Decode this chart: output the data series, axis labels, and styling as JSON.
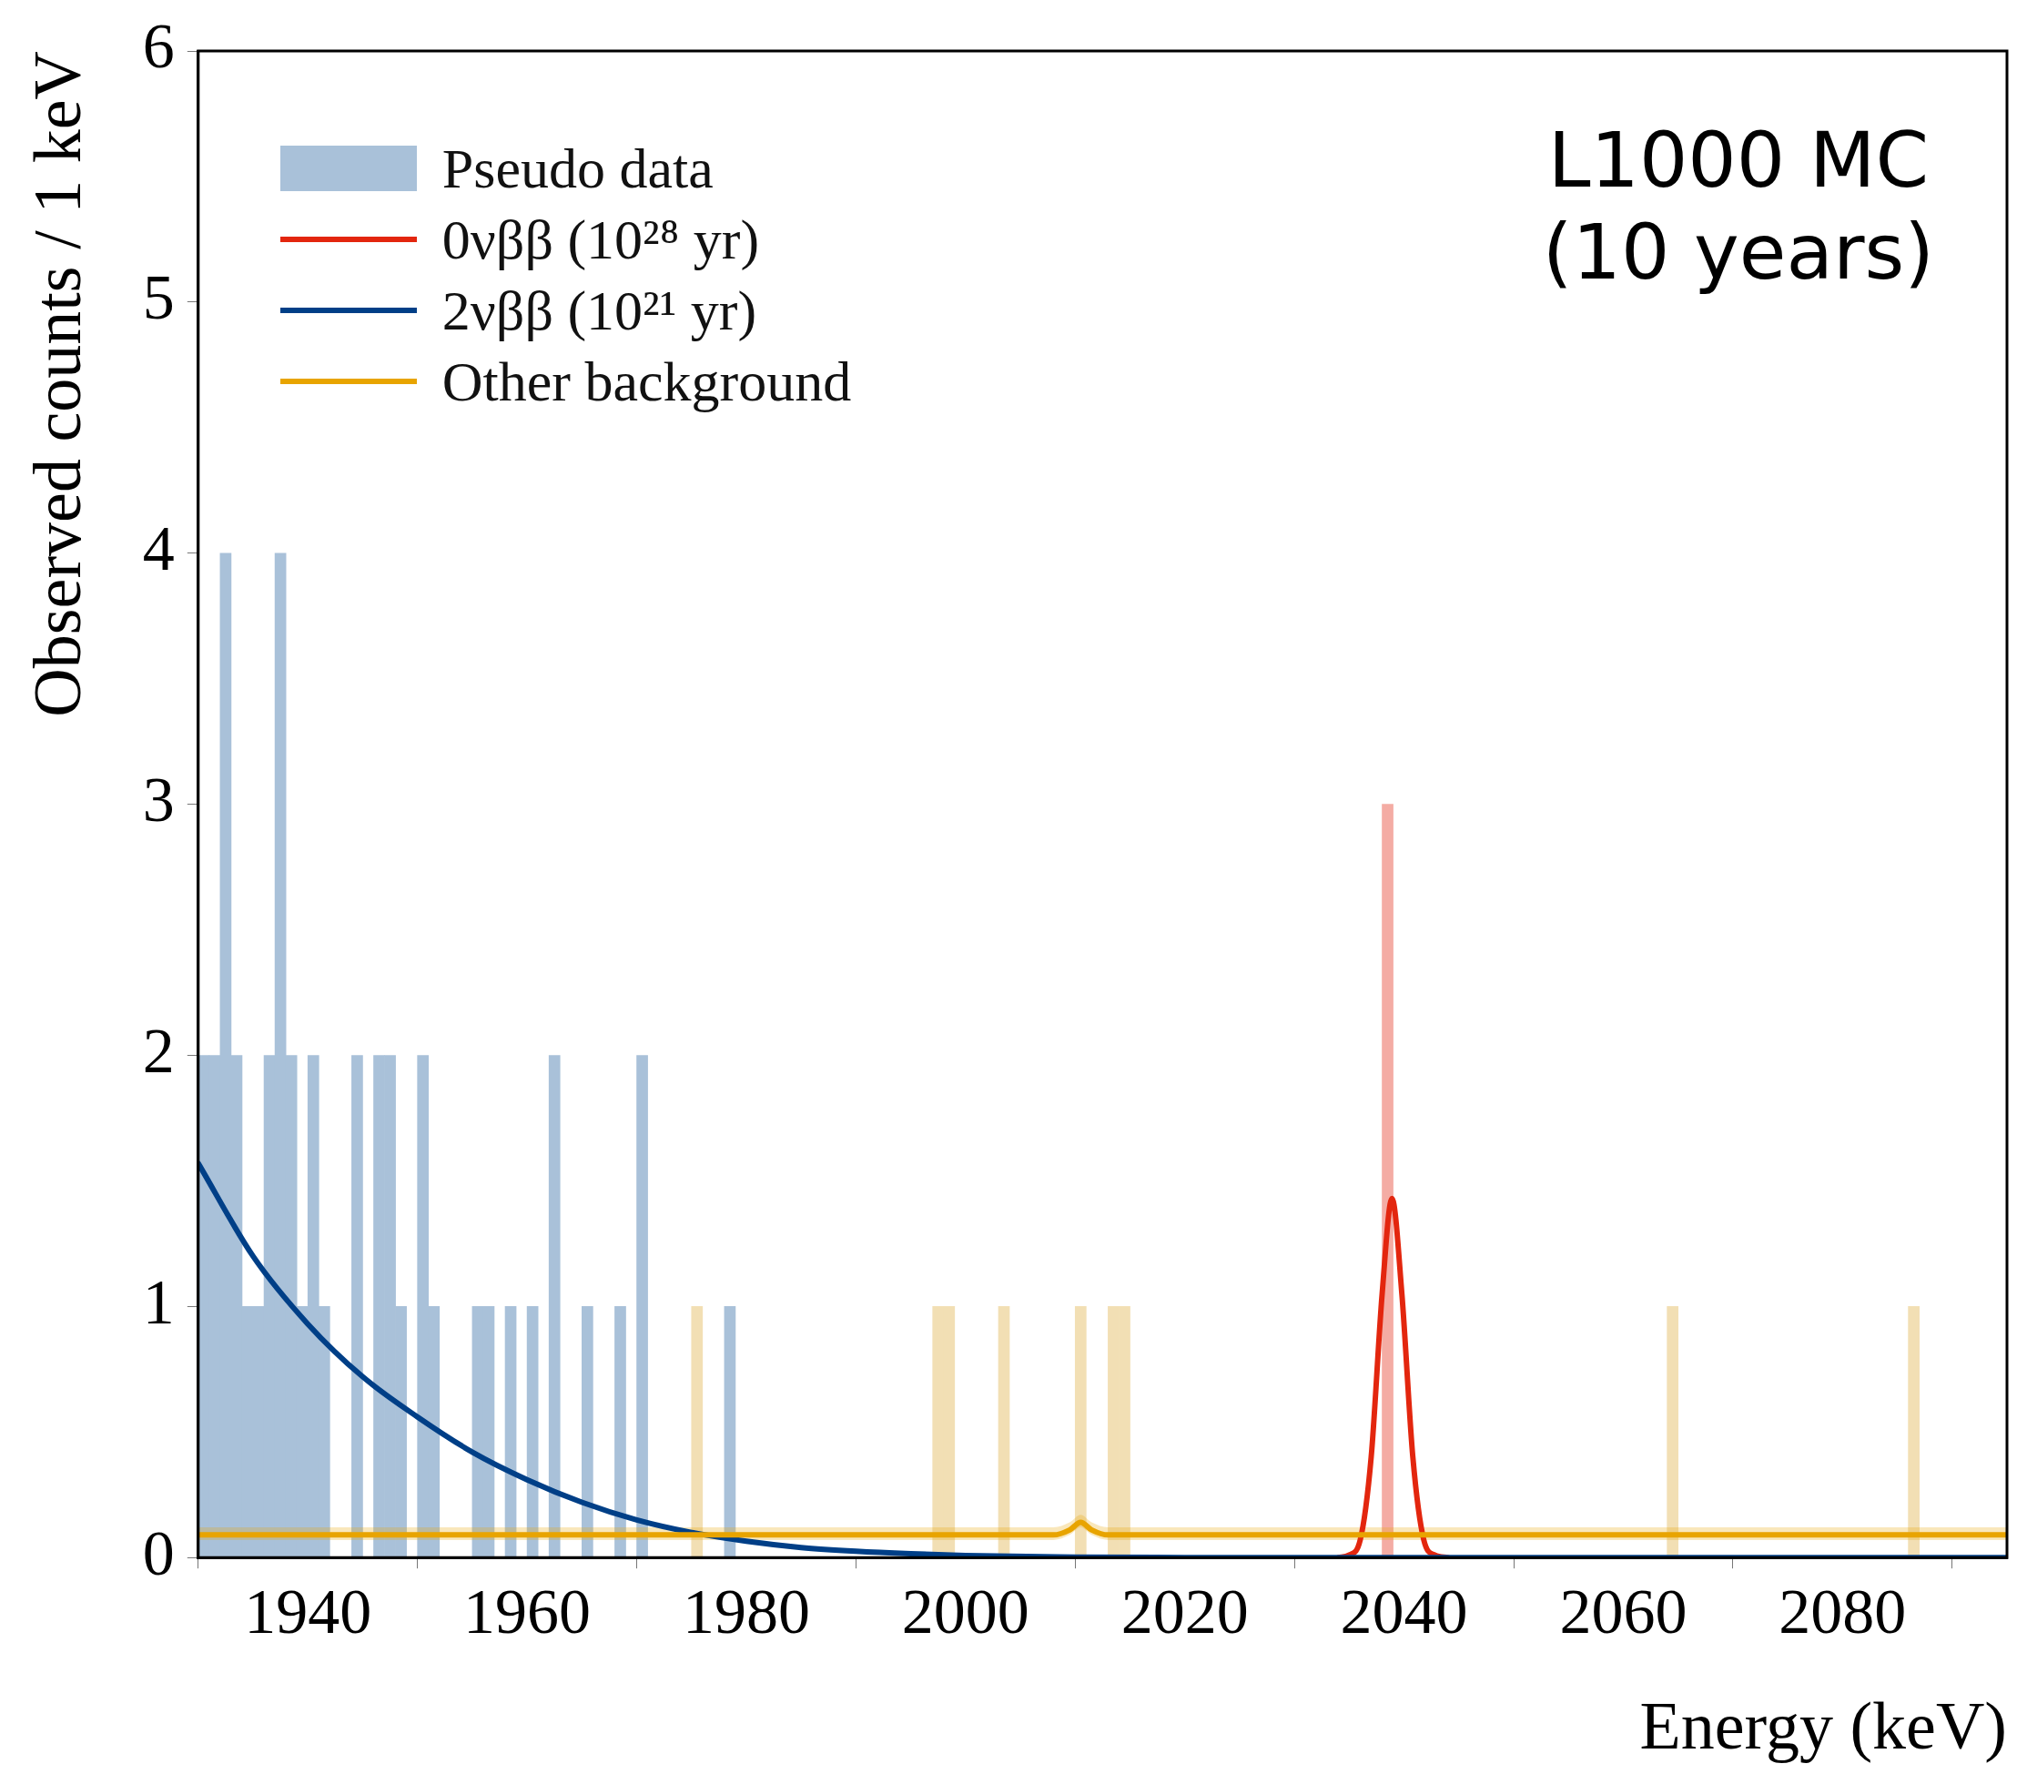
{
  "chart_data": {
    "type": "histogram",
    "xlabel": "Energy (keV)",
    "ylabel": "Observed counts / 1 keV",
    "annotations": [
      "L1000 MC",
      "(10 years)"
    ],
    "xlim": [
      1930,
      2095
    ],
    "xticks": [
      1940,
      1960,
      1980,
      2000,
      2020,
      2040,
      2060,
      2080
    ],
    "ylim": [
      0,
      6
    ],
    "yticks": [
      0,
      1,
      2,
      3,
      4,
      5,
      6
    ],
    "legend": "top left",
    "bins": [
      1930,
      1931,
      1932,
      1933,
      1934,
      1935,
      1936,
      1937,
      1938,
      1939,
      1940,
      1941,
      1942,
      1943,
      1944,
      1945,
      1946,
      1947,
      1948,
      1949,
      1950,
      1951,
      1952,
      1953,
      1954,
      1955,
      1956,
      1957,
      1958,
      1959,
      1960,
      1961,
      1962,
      1963,
      1964,
      1965,
      1966,
      1967,
      1968,
      1969,
      1970,
      1971,
      1972,
      1973,
      1974,
      1975,
      1976,
      1977,
      1978,
      1979,
      1980,
      1981,
      1982,
      1983,
      1984,
      1985,
      1986,
      1987,
      1988,
      1989,
      1990,
      1991,
      1992,
      1993,
      1994,
      1995,
      1996,
      1997,
      1998,
      1999,
      2000,
      2001,
      2002,
      2003,
      2004,
      2005,
      2006,
      2007,
      2008,
      2009,
      2010,
      2011,
      2012,
      2013,
      2014,
      2015,
      2016,
      2017,
      2018,
      2019,
      2020,
      2021,
      2022,
      2023,
      2024,
      2025,
      2026,
      2027,
      2028,
      2029,
      2030,
      2031,
      2032,
      2033,
      2034,
      2035,
      2036,
      2037,
      2038,
      2039,
      2040,
      2041,
      2042,
      2043,
      2044,
      2045,
      2046,
      2047,
      2048,
      2049,
      2050,
      2051,
      2052,
      2053,
      2054,
      2055,
      2056,
      2057,
      2058,
      2059,
      2060,
      2061,
      2062,
      2063,
      2064,
      2065,
      2066,
      2067,
      2068,
      2069,
      2070,
      2071,
      2072,
      2073,
      2074,
      2075,
      2076,
      2077,
      2078,
      2079,
      2080,
      2081,
      2082,
      2083,
      2084,
      2085,
      2086,
      2087,
      2088,
      2089,
      2090,
      2091,
      2092,
      2093,
      2094,
      2095
    ],
    "series": [
      {
        "name": "Pseudo data",
        "color": "#a9c1d9",
        "values": [
          2,
          2,
          4,
          2,
          1,
          1,
          2,
          4,
          2,
          1,
          2,
          1,
          0,
          0,
          2,
          0,
          2,
          2,
          1,
          0,
          2,
          1,
          0,
          0,
          0,
          1,
          1,
          0,
          1,
          0,
          1,
          0,
          2,
          0,
          0,
          1,
          0,
          0,
          1,
          0,
          2,
          0,
          0,
          0,
          0,
          1,
          0,
          0,
          1,
          0,
          0,
          0,
          0,
          0,
          0,
          0,
          0,
          0,
          0,
          0,
          0,
          0,
          0,
          0,
          0,
          0,
          0,
          1,
          1,
          0,
          0,
          0,
          0,
          1,
          0,
          0,
          0,
          0,
          0,
          0,
          1,
          0,
          0,
          1,
          1,
          0,
          0,
          0,
          0,
          0,
          0,
          0,
          0,
          0,
          0,
          0,
          0,
          0,
          0,
          0,
          0,
          0,
          0,
          0,
          0,
          0,
          0,
          0,
          3,
          0,
          0,
          0,
          0,
          0,
          0,
          0,
          0,
          0,
          0,
          0,
          0,
          0,
          0,
          0,
          0,
          0,
          0,
          0,
          0,
          0,
          0,
          0,
          0,
          0,
          1,
          0,
          0,
          0,
          0,
          0,
          0,
          0,
          0,
          0,
          0,
          0,
          0,
          0,
          0,
          0,
          0,
          0,
          0,
          0,
          0,
          0,
          1,
          0,
          0,
          0,
          0,
          0,
          0,
          0,
          0
        ],
        "colors": [
          "#a9c1d9",
          "#a9c1d9",
          "#a9c1d9",
          "#a9c1d9",
          "#a9c1d9",
          "#a9c1d9",
          "#a9c1d9",
          "#a9c1d9",
          "#a9c1d9",
          "#a9c1d9",
          "#a9c1d9",
          "#a9c1d9",
          "#a9c1d9",
          "#a9c1d9",
          "#a9c1d9",
          "#a9c1d9",
          "#a9c1d9",
          "#a9c1d9",
          "#a9c1d9",
          "#a9c1d9",
          "#a9c1d9",
          "#a9c1d9",
          "#a9c1d9",
          "#a9c1d9",
          "#a9c1d9",
          "#a9c1d9",
          "#a9c1d9",
          "#a9c1d9",
          "#a9c1d9",
          "#a9c1d9",
          "#a9c1d9",
          "#a9c1d9",
          "#a9c1d9",
          "#a9c1d9",
          "#a9c1d9",
          "#a9c1d9",
          "#a9c1d9",
          "#a9c1d9",
          "#a9c1d9",
          "#a9c1d9",
          "#a9c1d9",
          "#a9c1d9",
          "#a9c1d9",
          "#a9c1d9",
          "#a9c1d9",
          "#f2dfb4",
          "#a9c1d9",
          "#a9c1d9",
          "#a9c1d9",
          "#a9c1d9",
          "#a9c1d9",
          "#a9c1d9",
          "#a9c1d9",
          "#a9c1d9",
          "#a9c1d9",
          "#a9c1d9",
          "#a9c1d9",
          "#a9c1d9",
          "#a9c1d9",
          "#a9c1d9",
          "#a9c1d9",
          "#a9c1d9",
          "#a9c1d9",
          "#a9c1d9",
          "#a9c1d9",
          "#a9c1d9",
          "#a9c1d9",
          "#f2dfb4",
          "#f2dfb4",
          "#a9c1d9",
          "#a9c1d9",
          "#a9c1d9",
          "#a9c1d9",
          "#f2dfb4",
          "#a9c1d9",
          "#a9c1d9",
          "#a9c1d9",
          "#a9c1d9",
          "#a9c1d9",
          "#a9c1d9",
          "#f2dfb4",
          "#a9c1d9",
          "#a9c1d9",
          "#f2dfb4",
          "#f2dfb4",
          "#a9c1d9",
          "#a9c1d9",
          "#a9c1d9",
          "#a9c1d9",
          "#a9c1d9",
          "#a9c1d9",
          "#a9c1d9",
          "#a9c1d9",
          "#a9c1d9",
          "#a9c1d9",
          "#a9c1d9",
          "#a9c1d9",
          "#a9c1d9",
          "#a9c1d9",
          "#a9c1d9",
          "#a9c1d9",
          "#a9c1d9",
          "#a9c1d9",
          "#a9c1d9",
          "#a9c1d9",
          "#a9c1d9",
          "#a9c1d9",
          "#a9c1d9",
          "#f4aca4",
          "#a9c1d9",
          "#a9c1d9",
          "#a9c1d9",
          "#a9c1d9",
          "#a9c1d9",
          "#a9c1d9",
          "#a9c1d9",
          "#a9c1d9",
          "#a9c1d9",
          "#a9c1d9",
          "#a9c1d9",
          "#a9c1d9",
          "#a9c1d9",
          "#a9c1d9",
          "#a9c1d9",
          "#a9c1d9",
          "#a9c1d9",
          "#a9c1d9",
          "#a9c1d9",
          "#a9c1d9",
          "#a9c1d9",
          "#a9c1d9",
          "#a9c1d9",
          "#a9c1d9",
          "#a9c1d9",
          "#f2dfb4",
          "#a9c1d9",
          "#a9c1d9",
          "#a9c1d9",
          "#a9c1d9",
          "#a9c1d9",
          "#a9c1d9",
          "#a9c1d9",
          "#a9c1d9",
          "#a9c1d9",
          "#a9c1d9",
          "#a9c1d9",
          "#a9c1d9",
          "#a9c1d9",
          "#a9c1d9",
          "#a9c1d9",
          "#a9c1d9",
          "#a9c1d9",
          "#a9c1d9",
          "#a9c1d9",
          "#a9c1d9",
          "#a9c1d9",
          "#f2dfb4",
          "#a9c1d9",
          "#a9c1d9",
          "#a9c1d9",
          "#a9c1d9",
          "#a9c1d9",
          "#a9c1d9",
          "#a9c1d9",
          "#a9c1d9"
        ]
      },
      {
        "type": "line",
        "name": "0νββ (10²⁸ yr)",
        "color": "#e3260e",
        "x": [
          2034,
          2035,
          2036,
          2037,
          2038,
          2038.9,
          2039.8,
          2040.8,
          2041.8,
          2042.8,
          2044
        ],
        "values": [
          0,
          0.01,
          0.07,
          0.4,
          1.05,
          1.43,
          1.05,
          0.4,
          0.07,
          0.01,
          0
        ]
      },
      {
        "type": "line",
        "name": "2νββ (10²¹ yr)",
        "color": "#003f87",
        "x": [
          1930,
          1935,
          1940,
          1945,
          1950,
          1955,
          1960,
          1965,
          1970,
          1975,
          1980,
          1985,
          1990,
          1995,
          2000,
          2010,
          2020,
          2095
        ],
        "values": [
          1.57,
          1.2,
          0.93,
          0.72,
          0.56,
          0.42,
          0.31,
          0.22,
          0.15,
          0.1,
          0.065,
          0.04,
          0.025,
          0.015,
          0.008,
          0.002,
          0,
          0
        ]
      },
      {
        "type": "line",
        "name": "Other background",
        "color": "#e8a400",
        "x": [
          1930,
          2008,
          2009.5,
          2010.5,
          2011.5,
          2013,
          2095
        ],
        "values": [
          0.09,
          0.09,
          0.11,
          0.14,
          0.11,
          0.09,
          0.09
        ],
        "lower": [
          0.07,
          0.07,
          0.09,
          0.12,
          0.09,
          0.07,
          0.07
        ],
        "upper": [
          0.12,
          0.12,
          0.14,
          0.17,
          0.14,
          0.12,
          0.12
        ]
      }
    ]
  }
}
